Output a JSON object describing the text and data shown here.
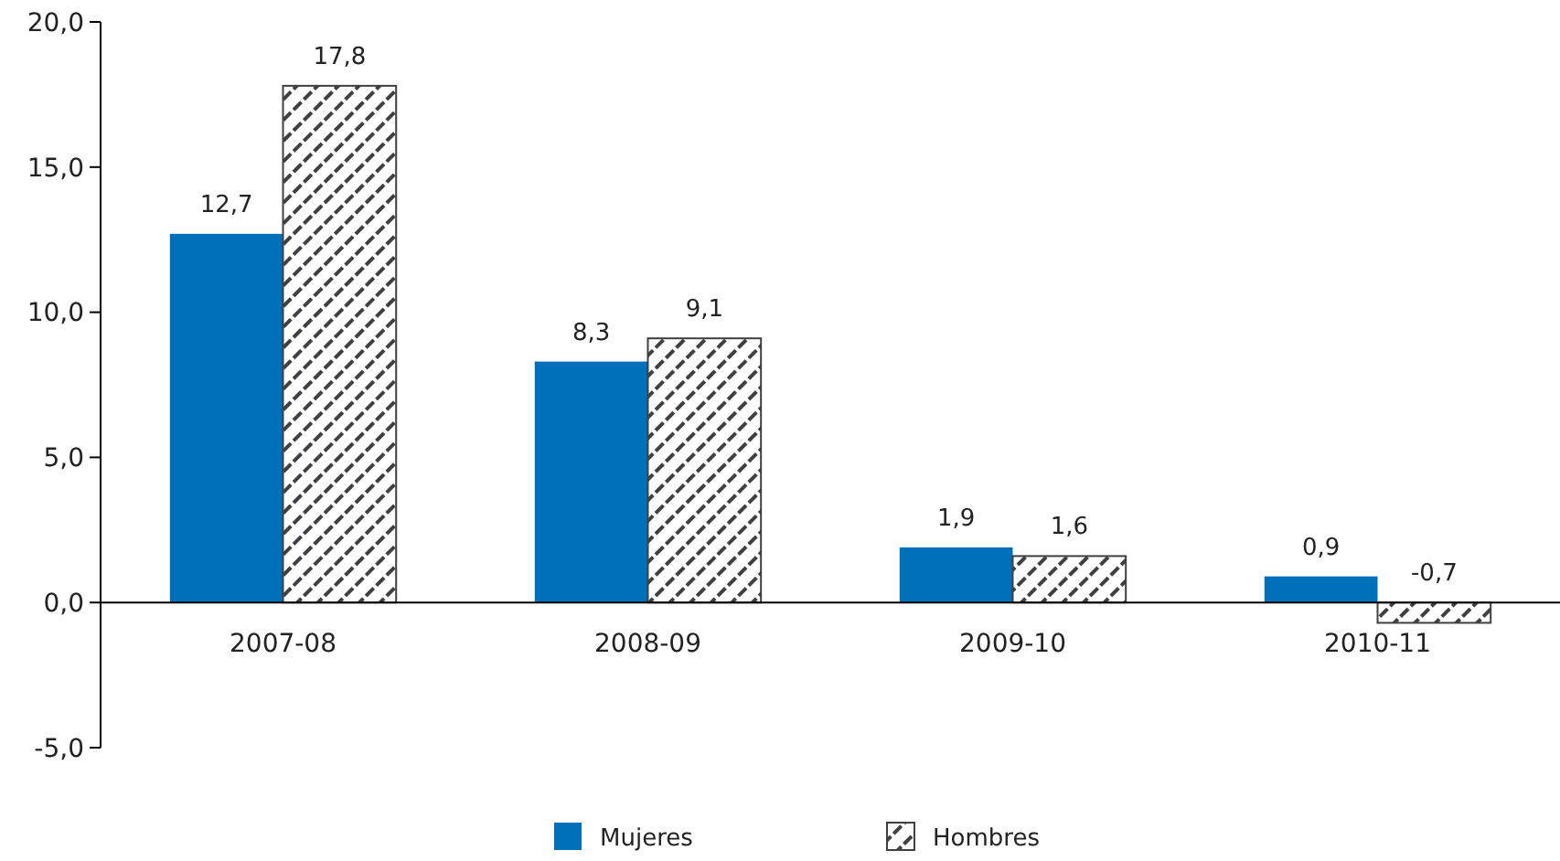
{
  "chart_data": {
    "type": "bar",
    "categories": [
      "2007-08",
      "2008-09",
      "2009-10",
      "2010-11"
    ],
    "series": [
      {
        "name": "Mujeres",
        "color": "#0070ba",
        "values": [
          12.7,
          8.3,
          1.9,
          0.9
        ],
        "value_labels": [
          "12,7",
          "8,3",
          "1,9",
          "0,9"
        ]
      },
      {
        "name": "Hombres",
        "color": "#404040",
        "values": [
          17.8,
          9.1,
          1.6,
          -0.7
        ],
        "value_labels": [
          "17,8",
          "9,1",
          "1,6",
          "-0,7"
        ]
      }
    ],
    "ylim": [
      -5,
      20
    ],
    "yticks": [
      {
        "value": -5,
        "label": "-5,0"
      },
      {
        "value": 0,
        "label": "0,0"
      },
      {
        "value": 5,
        "label": "5,0"
      },
      {
        "value": 10,
        "label": "10,0"
      },
      {
        "value": 15,
        "label": "15,0"
      },
      {
        "value": 20,
        "label": "20,0"
      }
    ],
    "legend": "bottom",
    "grid": false
  }
}
